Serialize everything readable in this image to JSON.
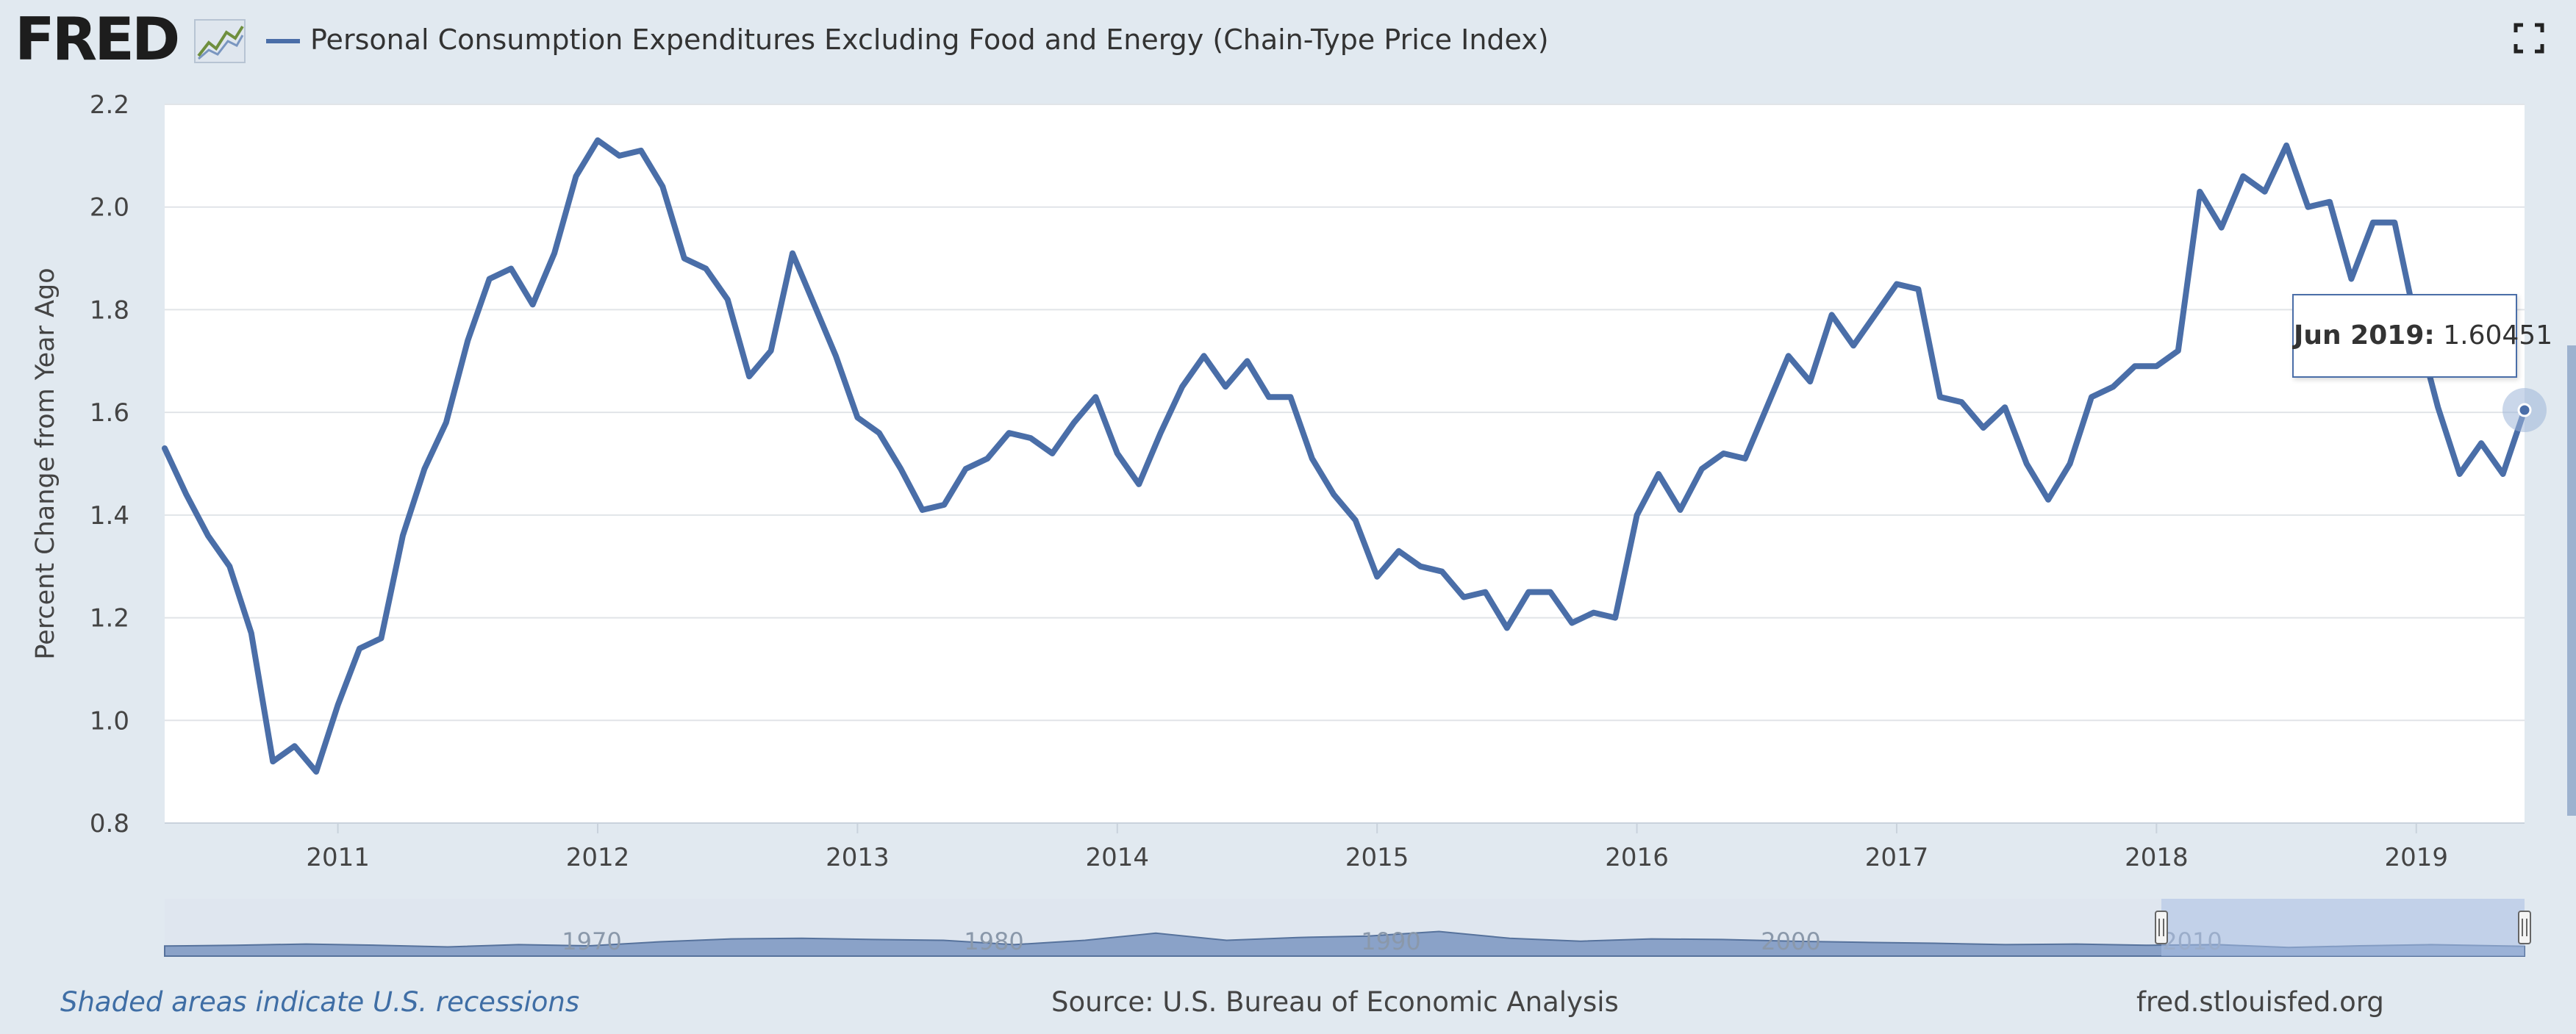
{
  "header": {
    "logo": "FRED",
    "series_title": "Personal Consumption Expenditures Excluding Food and Energy (Chain-Type Price Index)",
    "fullscreen_icon": "fullscreen-icon"
  },
  "colors": {
    "series": "#4a6ea8",
    "navigator_fill": "#8aa2c8",
    "page_background": "#e1e9f0"
  },
  "tooltip": {
    "label": "Jun 2019:",
    "value": "1.60451"
  },
  "navigator": {
    "year_labels": [
      "1970",
      "1980",
      "1990",
      "2000",
      "2010"
    ]
  },
  "footer": {
    "recession_note": "Shaded areas indicate U.S. recessions",
    "source": "Source: U.S. Bureau of Economic Analysis",
    "url": "fred.stlouisfed.org"
  },
  "chart_data": {
    "type": "line",
    "title": "",
    "xlabel": "",
    "ylabel": "Percent Change from Year Ago",
    "ylim": [
      0.8,
      2.2
    ],
    "yticks": [
      "0.8",
      "1.0",
      "1.2",
      "1.4",
      "1.6",
      "1.8",
      "2.0",
      "2.2"
    ],
    "xticks": [
      "2011",
      "2012",
      "2013",
      "2014",
      "2015",
      "2016",
      "2017",
      "2018",
      "2019"
    ],
    "xlim": [
      "2010-05",
      "2019-06"
    ],
    "grid": true,
    "series": [
      {
        "name": "Personal Consumption Expenditures Excluding Food and Energy (Chain-Type Price Index)",
        "x": [
          "2010-05",
          "2010-06",
          "2010-07",
          "2010-08",
          "2010-09",
          "2010-10",
          "2010-11",
          "2010-12",
          "2011-01",
          "2011-02",
          "2011-03",
          "2011-04",
          "2011-05",
          "2011-06",
          "2011-07",
          "2011-08",
          "2011-09",
          "2011-10",
          "2011-11",
          "2011-12",
          "2012-01",
          "2012-02",
          "2012-03",
          "2012-04",
          "2012-05",
          "2012-06",
          "2012-07",
          "2012-08",
          "2012-09",
          "2012-10",
          "2012-11",
          "2012-12",
          "2013-01",
          "2013-02",
          "2013-03",
          "2013-04",
          "2013-05",
          "2013-06",
          "2013-07",
          "2013-08",
          "2013-09",
          "2013-10",
          "2013-11",
          "2013-12",
          "2014-01",
          "2014-02",
          "2014-03",
          "2014-04",
          "2014-05",
          "2014-06",
          "2014-07",
          "2014-08",
          "2014-09",
          "2014-10",
          "2014-11",
          "2014-12",
          "2015-01",
          "2015-02",
          "2015-03",
          "2015-04",
          "2015-05",
          "2015-06",
          "2015-07",
          "2015-08",
          "2015-09",
          "2015-10",
          "2015-11",
          "2015-12",
          "2016-01",
          "2016-02",
          "2016-03",
          "2016-04",
          "2016-05",
          "2016-06",
          "2016-07",
          "2016-08",
          "2016-09",
          "2016-10",
          "2016-11",
          "2016-12",
          "2017-01",
          "2017-02",
          "2017-03",
          "2017-04",
          "2017-05",
          "2017-06",
          "2017-07",
          "2017-08",
          "2017-09",
          "2017-10",
          "2017-11",
          "2017-12",
          "2018-01",
          "2018-02",
          "2018-03",
          "2018-04",
          "2018-05",
          "2018-06",
          "2018-07",
          "2018-08",
          "2018-09",
          "2018-10",
          "2018-11",
          "2018-12",
          "2019-01",
          "2019-02",
          "2019-03",
          "2019-04",
          "2019-05",
          "2019-06"
        ],
        "values": [
          1.53,
          1.44,
          1.36,
          1.3,
          1.17,
          0.92,
          0.95,
          0.9,
          1.03,
          1.14,
          1.16,
          1.36,
          1.49,
          1.58,
          1.74,
          1.86,
          1.88,
          1.81,
          1.91,
          2.06,
          2.13,
          2.1,
          2.11,
          2.04,
          1.9,
          1.88,
          1.82,
          1.67,
          1.72,
          1.91,
          1.81,
          1.71,
          1.59,
          1.56,
          1.49,
          1.41,
          1.42,
          1.49,
          1.51,
          1.56,
          1.55,
          1.52,
          1.58,
          1.63,
          1.52,
          1.46,
          1.56,
          1.65,
          1.71,
          1.65,
          1.7,
          1.63,
          1.63,
          1.51,
          1.44,
          1.39,
          1.28,
          1.33,
          1.3,
          1.29,
          1.24,
          1.25,
          1.18,
          1.25,
          1.25,
          1.19,
          1.21,
          1.2,
          1.4,
          1.48,
          1.41,
          1.49,
          1.52,
          1.51,
          1.61,
          1.71,
          1.66,
          1.79,
          1.73,
          1.79,
          1.85,
          1.84,
          1.63,
          1.62,
          1.57,
          1.61,
          1.5,
          1.43,
          1.5,
          1.63,
          1.65,
          1.69,
          1.69,
          1.72,
          2.03,
          1.96,
          2.06,
          2.03,
          2.12,
          2.0,
          2.01,
          1.86,
          1.97,
          1.97,
          1.77,
          1.61,
          1.48,
          1.54,
          1.48,
          1.60451
        ]
      }
    ],
    "annotations": [
      {
        "x": "2019-06",
        "label": "Jun 2019:",
        "value": "1.60451"
      }
    ]
  }
}
